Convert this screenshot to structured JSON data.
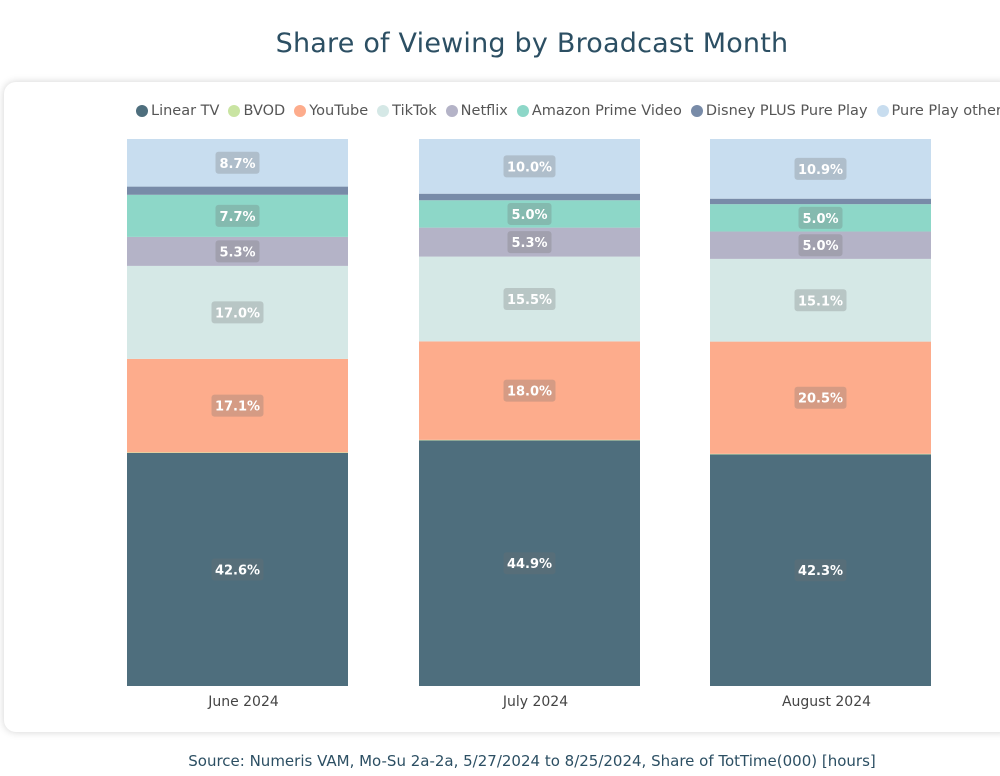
{
  "chart_data": {
    "type": "bar",
    "stacked": true,
    "title": "Share of Viewing by Broadcast Month",
    "categories": [
      "June 2024",
      "July 2024",
      "August 2024"
    ],
    "series": [
      {
        "name": "Linear TV",
        "color": "#4e6e7d",
        "values": [
          42.6,
          44.9,
          42.3
        ],
        "labels": [
          "42.6%",
          "44.9%",
          "42.3%"
        ]
      },
      {
        "name": "BVOD",
        "color": "#c9e4a2",
        "values": [
          0.1,
          0.1,
          0.1
        ],
        "labels": [
          null,
          null,
          null
        ]
      },
      {
        "name": "YouTube",
        "color": "#fdac8c",
        "values": [
          17.1,
          18.0,
          20.5
        ],
        "labels": [
          "17.1%",
          "18.0%",
          "20.5%"
        ]
      },
      {
        "name": "TikTok",
        "color": "#d5e8e6",
        "values": [
          17.0,
          15.5,
          15.1
        ],
        "labels": [
          "17.0%",
          "15.5%",
          "15.1%"
        ]
      },
      {
        "name": "Netflix",
        "color": "#b4b3c7",
        "values": [
          5.3,
          5.3,
          5.0
        ],
        "labels": [
          "5.3%",
          "5.3%",
          "5.0%"
        ]
      },
      {
        "name": "Amazon Prime Video",
        "color": "#8dd7c8",
        "values": [
          7.7,
          5.0,
          5.0
        ],
        "labels": [
          "7.7%",
          "5.0%",
          "5.0%"
        ]
      },
      {
        "name": "Disney PLUS Pure Play",
        "color": "#788ba8",
        "values": [
          1.5,
          1.2,
          1.0
        ],
        "labels": [
          null,
          null,
          null
        ]
      },
      {
        "name": "Pure Play other",
        "color": "#c8ddef",
        "values": [
          8.7,
          10.0,
          10.9
        ],
        "labels": [
          "8.7%",
          "10.0%",
          "10.9%"
        ]
      }
    ],
    "legend_position": "top",
    "grid": false
  },
  "footer": {
    "source": "Source: Numeris VAM, Mo-Su 2a-2a, 5/27/2024 to 8/25/2024, Share of TotTime(000) [hours]"
  }
}
